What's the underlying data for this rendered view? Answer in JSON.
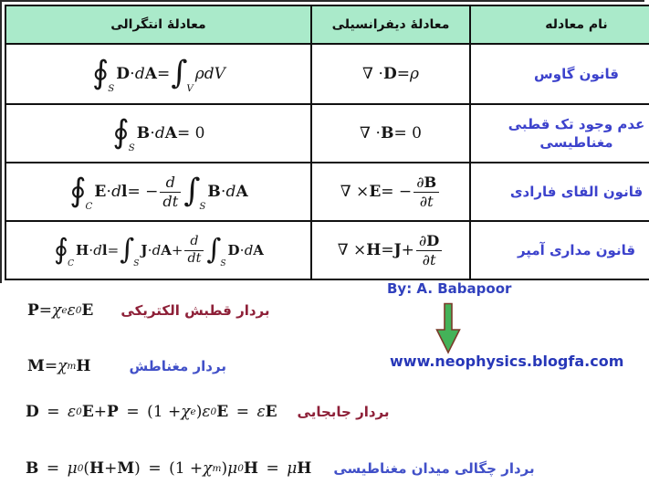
{
  "table": {
    "headers": {
      "integral": "معادلۀ انتگرالی",
      "differential": "معادلۀ دیفرانسیلی",
      "name": "نام معادله"
    },
    "rows": [
      {
        "name": "قانون گاوس",
        "integral": [
          {
            "t": "big",
            "v": "∮",
            "lim": "S"
          },
          {
            "t": "r",
            "v": " "
          },
          {
            "t": "v",
            "v": "D"
          },
          {
            "t": "r",
            "v": " ⋅ "
          },
          {
            "t": "i",
            "v": "d"
          },
          {
            "t": "v",
            "v": "A"
          },
          {
            "t": "r",
            "v": " = "
          },
          {
            "t": "big",
            "v": "∫",
            "lim": "V"
          },
          {
            "t": "r",
            "v": " "
          },
          {
            "t": "i",
            "v": "ρdV"
          }
        ],
        "differential": [
          {
            "t": "r",
            "v": "∇ ⋅ "
          },
          {
            "t": "v",
            "v": "D"
          },
          {
            "t": "r",
            "v": " = "
          },
          {
            "t": "i",
            "v": "ρ"
          }
        ]
      },
      {
        "name": "عدم وجود تک قطبی مغناطیسی",
        "integral": [
          {
            "t": "big",
            "v": "∮",
            "lim": "S"
          },
          {
            "t": "r",
            "v": " "
          },
          {
            "t": "v",
            "v": "B"
          },
          {
            "t": "r",
            "v": " ⋅ "
          },
          {
            "t": "i",
            "v": "d"
          },
          {
            "t": "v",
            "v": "A"
          },
          {
            "t": "r",
            "v": " = 0"
          }
        ],
        "differential": [
          {
            "t": "r",
            "v": "∇ ⋅ "
          },
          {
            "t": "v",
            "v": "B"
          },
          {
            "t": "r",
            "v": " = 0"
          }
        ]
      },
      {
        "name": "قانون القای فارادی",
        "integral": [
          {
            "t": "big",
            "v": "∮",
            "lim": "C"
          },
          {
            "t": "r",
            "v": " "
          },
          {
            "t": "v",
            "v": "E"
          },
          {
            "t": "r",
            "v": " ⋅ "
          },
          {
            "t": "i",
            "v": "d"
          },
          {
            "t": "v",
            "v": "l"
          },
          {
            "t": "r",
            "v": " = − "
          },
          {
            "t": "frac",
            "num": [
              {
                "t": "i",
                "v": "d"
              }
            ],
            "den": [
              {
                "t": "i",
                "v": "dt"
              }
            ]
          },
          {
            "t": "r",
            "v": " "
          },
          {
            "t": "big",
            "v": "∫",
            "lim": "S"
          },
          {
            "t": "r",
            "v": " "
          },
          {
            "t": "v",
            "v": "B"
          },
          {
            "t": "r",
            "v": " ⋅ "
          },
          {
            "t": "i",
            "v": "d"
          },
          {
            "t": "v",
            "v": "A"
          }
        ],
        "differential": [
          {
            "t": "r",
            "v": "∇ × "
          },
          {
            "t": "v",
            "v": "E"
          },
          {
            "t": "r",
            "v": " = −"
          },
          {
            "t": "frac",
            "num": [
              {
                "t": "i",
                "v": "∂"
              },
              {
                "t": "v",
                "v": "B"
              }
            ],
            "den": [
              {
                "t": "i",
                "v": "∂t"
              }
            ]
          }
        ]
      },
      {
        "name": "قانون مداری آمپر",
        "integral": [
          {
            "t": "big",
            "v": "∮",
            "lim": "C"
          },
          {
            "t": "r",
            "v": " "
          },
          {
            "t": "v",
            "v": "H"
          },
          {
            "t": "r",
            "v": " ⋅ "
          },
          {
            "t": "i",
            "v": "d"
          },
          {
            "t": "v",
            "v": "l"
          },
          {
            "t": "r",
            "v": " = "
          },
          {
            "t": "big",
            "v": "∫",
            "lim": "S"
          },
          {
            "t": "r",
            "v": " "
          },
          {
            "t": "v",
            "v": "J"
          },
          {
            "t": "r",
            "v": " ⋅ "
          },
          {
            "t": "i",
            "v": "d"
          },
          {
            "t": "v",
            "v": "A"
          },
          {
            "t": "r",
            "v": " + "
          },
          {
            "t": "frac",
            "num": [
              {
                "t": "i",
                "v": "d"
              }
            ],
            "den": [
              {
                "t": "i",
                "v": "dt"
              }
            ]
          },
          {
            "t": "r",
            "v": " "
          },
          {
            "t": "big",
            "v": "∫",
            "lim": "S"
          },
          {
            "t": "r",
            "v": " "
          },
          {
            "t": "v",
            "v": "D"
          },
          {
            "t": "r",
            "v": " ⋅ "
          },
          {
            "t": "i",
            "v": "d"
          },
          {
            "t": "v",
            "v": "A"
          }
        ],
        "differential": [
          {
            "t": "r",
            "v": "∇ × "
          },
          {
            "t": "v",
            "v": "H"
          },
          {
            "t": "r",
            "v": " = "
          },
          {
            "t": "v",
            "v": "J"
          },
          {
            "t": "r",
            "v": " + "
          },
          {
            "t": "frac",
            "num": [
              {
                "t": "i",
                "v": "∂"
              },
              {
                "t": "v",
                "v": "D"
              }
            ],
            "den": [
              {
                "t": "i",
                "v": "∂t"
              }
            ]
          }
        ]
      }
    ]
  },
  "credit": {
    "by": "By: A. Babapoor",
    "url": "www.neophysics.blogfa.com"
  },
  "icons": {
    "arrow": "green-down-arrow"
  },
  "vector_equations": [
    {
      "label": "بردار قطبش الکتریکی",
      "label_color": "#8e2038",
      "tokens": [
        {
          "t": "v",
          "v": "P"
        },
        {
          "t": "r",
          "v": " = "
        },
        {
          "t": "i",
          "v": "χ"
        },
        {
          "t": "sub",
          "v": "e"
        },
        {
          "t": "i",
          "v": "ε"
        },
        {
          "t": "sub",
          "v": "0"
        },
        {
          "t": "v",
          "v": "E"
        }
      ]
    },
    {
      "label": "بردار مغناطش",
      "label_color": "#4150c8",
      "tokens": [
        {
          "t": "v",
          "v": "M"
        },
        {
          "t": "r",
          "v": " = "
        },
        {
          "t": "i",
          "v": "χ"
        },
        {
          "t": "sub",
          "v": "m"
        },
        {
          "t": "v",
          "v": "H"
        }
      ]
    },
    {
      "label": "بردار جابجایی",
      "label_color": "#8e2038",
      "tokens": [
        {
          "t": "v",
          "v": "D"
        },
        {
          "t": "r",
          "v": " = "
        },
        {
          "t": "i",
          "v": "ε"
        },
        {
          "t": "sub",
          "v": "0"
        },
        {
          "t": "v",
          "v": "E"
        },
        {
          "t": "r",
          "v": " + "
        },
        {
          "t": "v",
          "v": "P"
        },
        {
          "t": "r",
          "v": " = "
        },
        {
          "t": "r",
          "v": "(1 + "
        },
        {
          "t": "i",
          "v": "χ"
        },
        {
          "t": "sub",
          "v": "e"
        },
        {
          "t": "r",
          "v": ")"
        },
        {
          "t": "i",
          "v": "ε"
        },
        {
          "t": "sub",
          "v": "0"
        },
        {
          "t": "v",
          "v": "E"
        },
        {
          "t": "r",
          "v": " = "
        },
        {
          "t": "i",
          "v": "ε"
        },
        {
          "t": "v",
          "v": "E"
        }
      ]
    },
    {
      "label": "بردار چگالی میدان مغناطیسی",
      "label_color": "#4150c8",
      "tokens": [
        {
          "t": "v",
          "v": "B"
        },
        {
          "t": "r",
          "v": " = "
        },
        {
          "t": "i",
          "v": "μ"
        },
        {
          "t": "sub",
          "v": "0"
        },
        {
          "t": "r",
          "v": "("
        },
        {
          "t": "v",
          "v": "H"
        },
        {
          "t": "r",
          "v": " + "
        },
        {
          "t": "v",
          "v": "M"
        },
        {
          "t": "r",
          "v": ")"
        },
        {
          "t": "r",
          "v": " = "
        },
        {
          "t": "r",
          "v": "(1 + "
        },
        {
          "t": "i",
          "v": "χ"
        },
        {
          "t": "sub",
          "v": "m"
        },
        {
          "t": "r",
          "v": ")"
        },
        {
          "t": "i",
          "v": "μ"
        },
        {
          "t": "sub",
          "v": "0"
        },
        {
          "t": "v",
          "v": "H"
        },
        {
          "t": "r",
          "v": " = "
        },
        {
          "t": "i",
          "v": "μ"
        },
        {
          "t": "v",
          "v": "H"
        }
      ]
    }
  ],
  "colors": {
    "header_bg": "#aaeaca",
    "table_border": "#111111",
    "name_text": "#3c42cc",
    "red_label": "#8e2038",
    "blue_label": "#4150c8",
    "credit_text": "#3141be",
    "url_text": "#2737b8",
    "arrow_fill": "#44b258",
    "arrow_stroke": "#7b3b2b"
  }
}
